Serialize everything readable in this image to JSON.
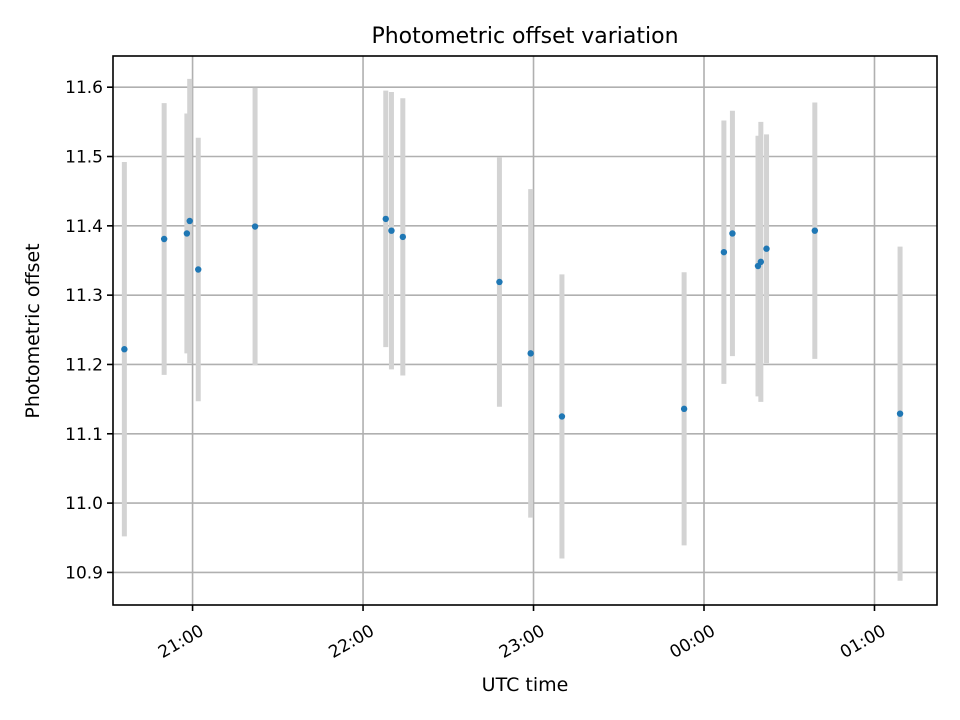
{
  "chart_data": {
    "type": "scatter",
    "title": "Photometric offset variation",
    "xlabel": "UTC time",
    "ylabel": "Photometric offset",
    "xlim": [
      "20:32",
      "01:22"
    ],
    "ylim": [
      10.853,
      11.645
    ],
    "grid": true,
    "x_ticks": [
      "21:00",
      "22:00",
      "23:00",
      "00:00",
      "01:00"
    ],
    "y_ticks": [
      10.9,
      11.0,
      11.1,
      11.2,
      11.3,
      11.4,
      11.5,
      11.6
    ],
    "y_tick_labels": [
      "10.9",
      "11.0",
      "11.1",
      "11.2",
      "11.3",
      "11.4",
      "11.5",
      "11.6"
    ],
    "colors": {
      "points": "#1f77b4",
      "error_bars": "#d3d3d3",
      "grid": "#b0b0b0"
    },
    "series": [
      {
        "points": [
          {
            "x": "20:36",
            "y": 11.222,
            "err": 0.27
          },
          {
            "x": "20:50",
            "y": 11.381,
            "err": 0.196
          },
          {
            "x": "20:58",
            "y": 11.389,
            "err": 0.173
          },
          {
            "x": "20:59",
            "y": 11.407,
            "err": 0.205
          },
          {
            "x": "21:02",
            "y": 11.337,
            "err": 0.19
          },
          {
            "x": "21:22",
            "y": 11.399,
            "err": 0.2
          },
          {
            "x": "22:08",
            "y": 11.41,
            "err": 0.185
          },
          {
            "x": "22:10",
            "y": 11.393,
            "err": 0.2
          },
          {
            "x": "22:14",
            "y": 11.384,
            "err": 0.2
          },
          {
            "x": "22:48",
            "y": 11.319,
            "err": 0.18
          },
          {
            "x": "22:59",
            "y": 11.216,
            "err": 0.237
          },
          {
            "x": "23:10",
            "y": 11.125,
            "err": 0.205
          },
          {
            "x": "23:53",
            "y": 11.136,
            "err": 0.197
          },
          {
            "x": "00:07",
            "y": 11.362,
            "err": 0.19
          },
          {
            "x": "00:10",
            "y": 11.389,
            "err": 0.177
          },
          {
            "x": "00:19",
            "y": 11.342,
            "err": 0.188
          },
          {
            "x": "00:20",
            "y": 11.348,
            "err": 0.202
          },
          {
            "x": "00:22",
            "y": 11.367,
            "err": 0.165
          },
          {
            "x": "00:39",
            "y": 11.393,
            "err": 0.185
          },
          {
            "x": "01:09",
            "y": 11.129,
            "err": 0.241
          }
        ]
      }
    ]
  }
}
